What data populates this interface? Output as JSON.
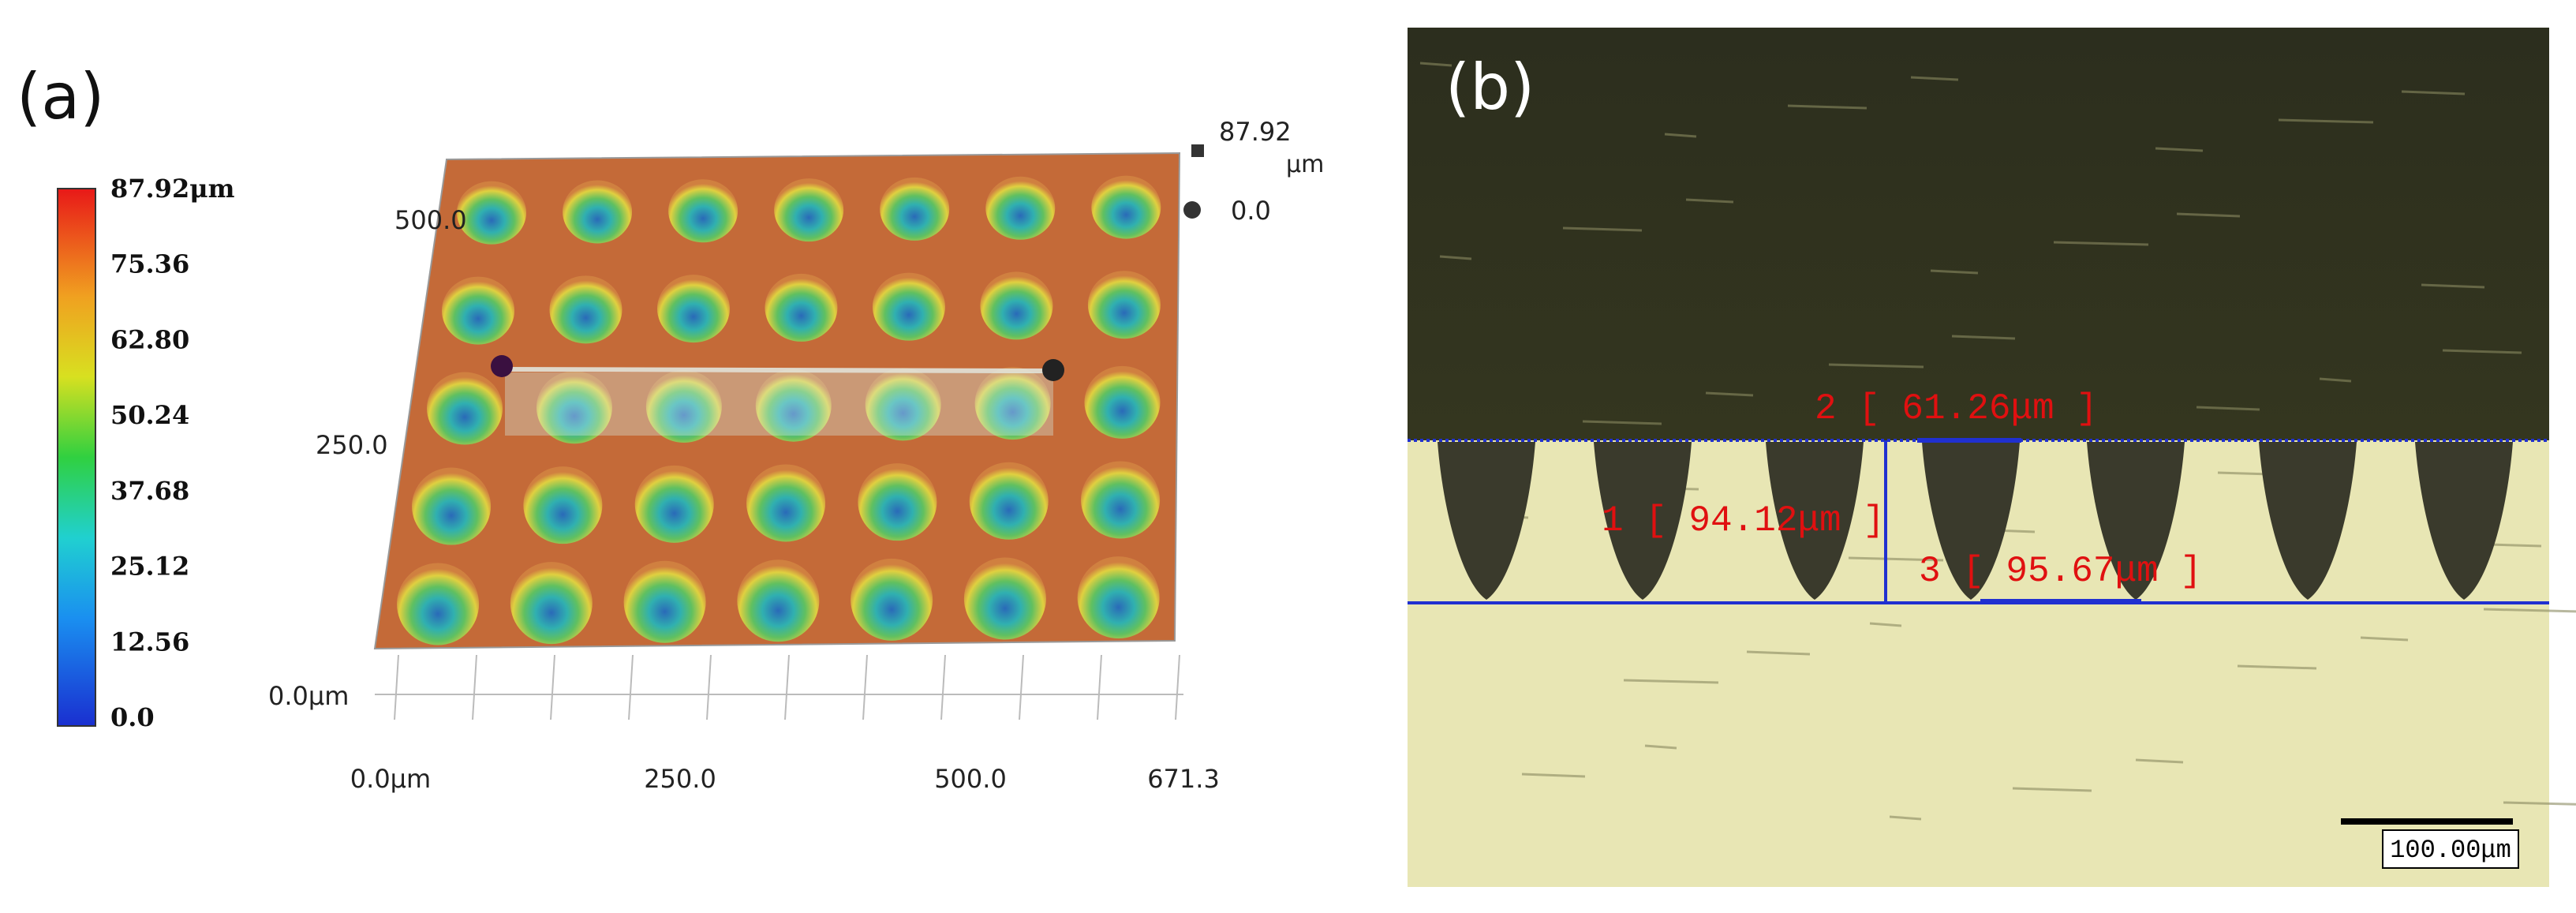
{
  "panel_a": {
    "label": "(a)",
    "colorbar_labels": [
      "87.92μm",
      "75.36",
      "62.80",
      "50.24",
      "37.68",
      "25.12",
      "12.56",
      "0.0"
    ],
    "y_labels": [
      "500.0",
      "250.0",
      "0.0μm"
    ],
    "x_labels": [
      "0.0μm",
      "250.0",
      "500.0",
      "671.3"
    ],
    "legend": {
      "top_value": "87.92",
      "unit": "μm",
      "bottom_value": "0.0"
    }
  },
  "panel_b": {
    "label": "(b)",
    "measurements": [
      "2 [ 61.26μm ]",
      "1 [ 94.12μm ]",
      "3 [ 95.67μm ]"
    ],
    "scale_bar": "100.00μm"
  }
}
